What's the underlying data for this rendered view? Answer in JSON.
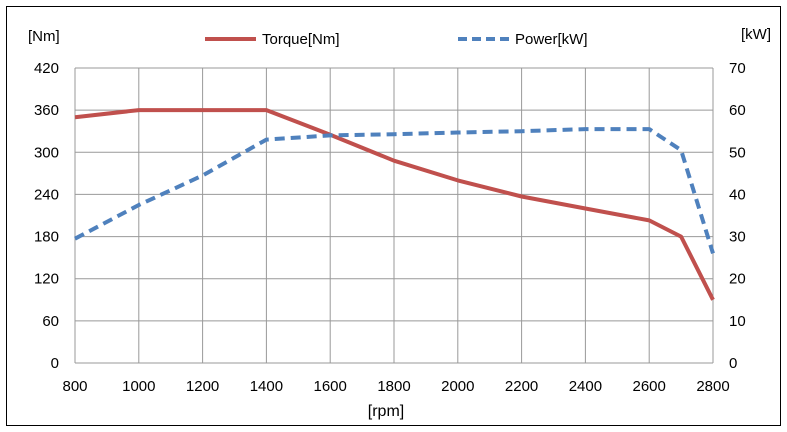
{
  "chart_data": {
    "type": "line",
    "x": [
      800,
      1000,
      1200,
      1400,
      1600,
      1800,
      2000,
      2200,
      2400,
      2600,
      2700,
      2800
    ],
    "xlabel": "[rpm]",
    "ylabel_left": "[Nm]",
    "ylabel_right": "[kW]",
    "xlim": [
      800,
      2800
    ],
    "ylim_left": [
      0,
      420
    ],
    "ylim_right": [
      0,
      70
    ],
    "x_ticks": [
      "800",
      "1000",
      "1200",
      "1400",
      "1600",
      "1800",
      "2000",
      "2200",
      "2400",
      "2600",
      "2800"
    ],
    "y_ticks_left": [
      "0",
      "60",
      "120",
      "180",
      "240",
      "300",
      "360",
      "420"
    ],
    "y_ticks_right": [
      "0",
      "10",
      "20",
      "30",
      "40",
      "50",
      "60",
      "70"
    ],
    "grid": true,
    "legend_position": "top",
    "series": [
      {
        "name": "Torque[Nm]",
        "axis": "left",
        "color": "#c0504d",
        "style": "solid",
        "values": [
          350,
          360,
          360,
          360,
          325,
          288,
          260,
          237,
          220,
          203,
          180,
          90
        ]
      },
      {
        "name": "Power[kW]",
        "axis": "right",
        "color": "#4f81bd",
        "style": "dashed",
        "values": [
          29.5,
          37.5,
          44.5,
          53,
          54,
          54.3,
          54.7,
          55,
          55.5,
          55.5,
          50.5,
          26
        ]
      }
    ]
  }
}
